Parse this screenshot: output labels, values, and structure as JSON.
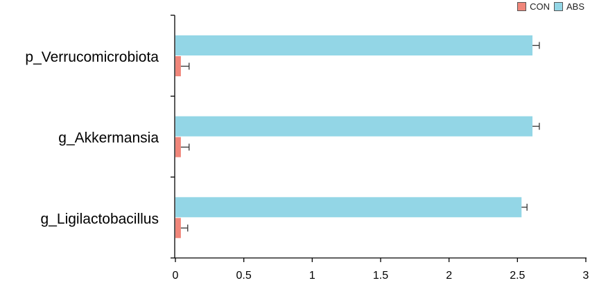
{
  "colors": {
    "CON": "#F0867A",
    "ABS": "#93D6E6",
    "axis": "#000000"
  },
  "chart_data": {
    "type": "bar",
    "orientation": "horizontal",
    "categories": [
      "p_Verrucomicrobiota",
      "g_Akkermansia",
      "g_Ligilactobacillus"
    ],
    "series": [
      {
        "name": "CON",
        "values": [
          0.04,
          0.04,
          0.04
        ],
        "errors": [
          0.06,
          0.06,
          0.05
        ]
      },
      {
        "name": "ABS",
        "values": [
          2.61,
          2.61,
          2.53
        ],
        "errors": [
          0.05,
          0.05,
          0.04
        ]
      }
    ],
    "xlim": [
      0,
      3
    ],
    "xticks": [
      0,
      0.5,
      1,
      1.5,
      2,
      2.5,
      3
    ],
    "xtick_labels": [
      "0",
      "0.5",
      "1",
      "1.5",
      "2",
      "2.5",
      "3"
    ],
    "legend_position": "top-right",
    "grid": false
  }
}
